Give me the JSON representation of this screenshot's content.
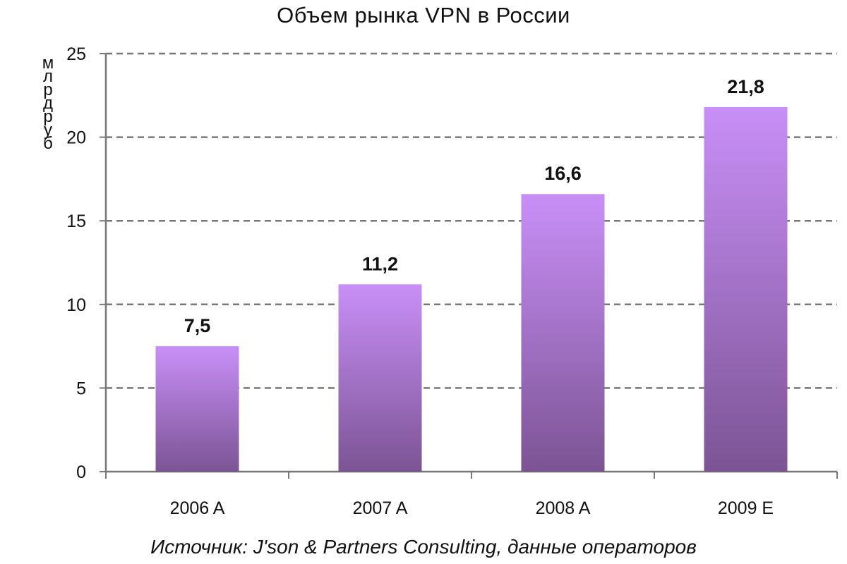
{
  "chart_data": {
    "type": "bar",
    "title": "Объем рынка VPN в России",
    "ylabel": "млрд руб",
    "xlabel": "",
    "categories": [
      "2006 A",
      "2007 A",
      "2008 A",
      "2009 E"
    ],
    "values": [
      7.5,
      11.2,
      16.6,
      21.8
    ],
    "data_labels": [
      "7,5",
      "11,2",
      "16,6",
      "21,8"
    ],
    "ylim": [
      0,
      25
    ],
    "yticks": [
      0,
      5,
      10,
      15,
      20,
      25
    ],
    "grid": true,
    "grid_style": "dashed",
    "bar_color_top": "#c88ff7",
    "bar_color_bottom": "#7c5494",
    "source": "Источник: J'son & Partners Consulting, данные операторов"
  }
}
